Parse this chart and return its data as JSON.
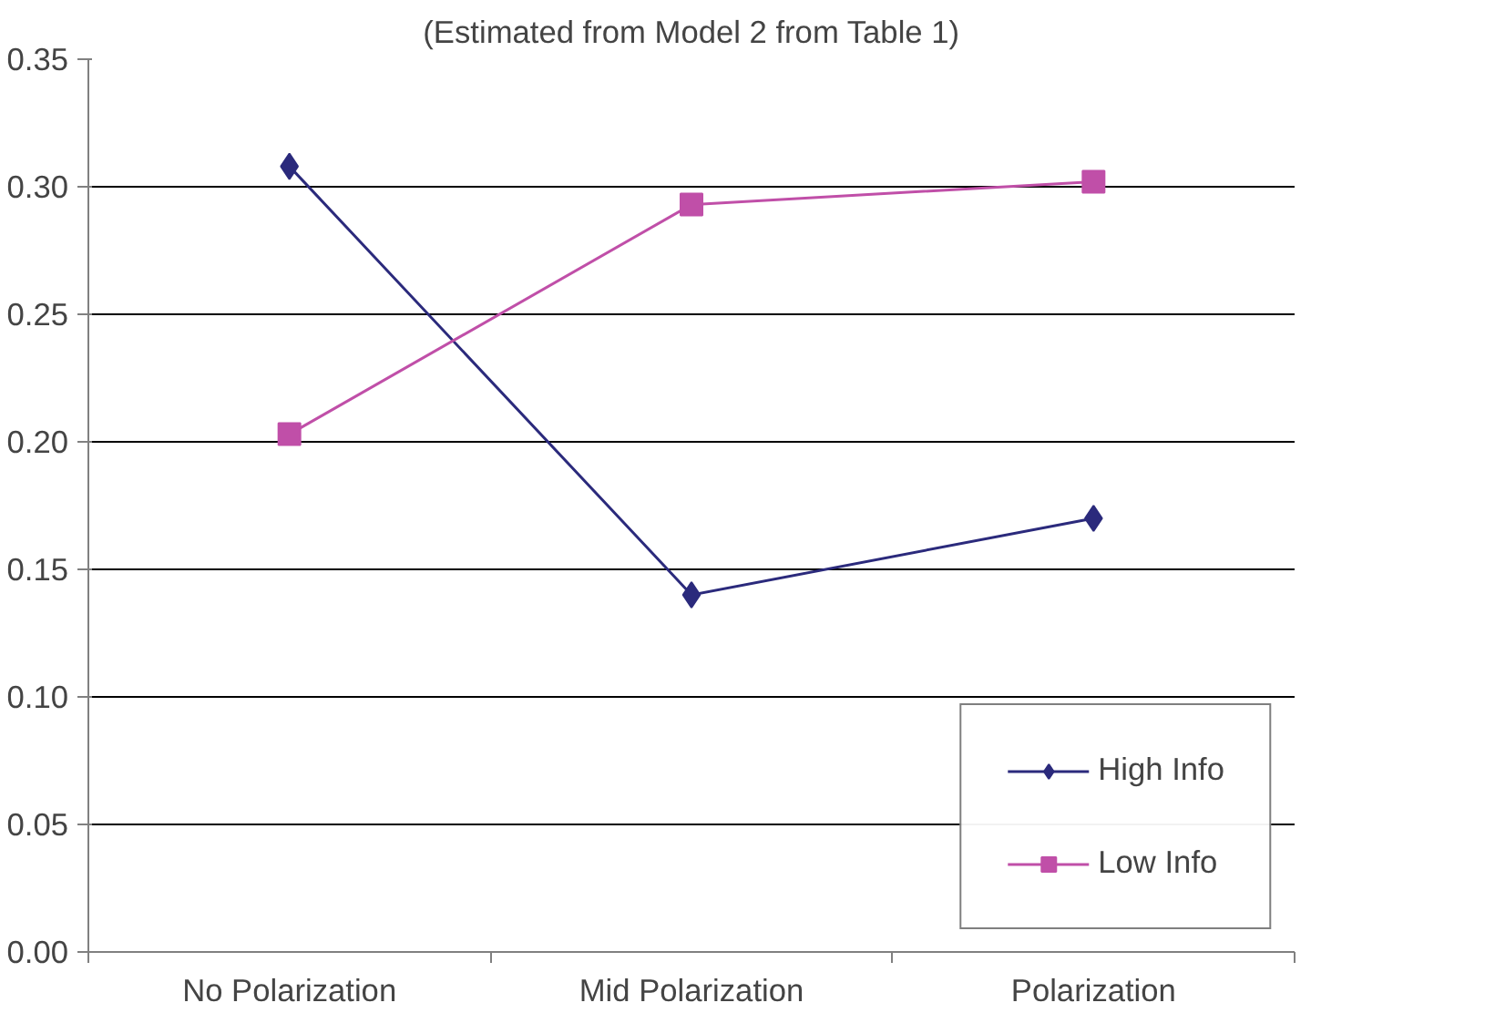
{
  "chart_data": {
    "type": "line",
    "title": "(Estimated from Model 2 from Table 1)",
    "categories": [
      "No Polarization",
      "Mid Polarization",
      "Polarization"
    ],
    "series": [
      {
        "name": "High Info",
        "color": "#2b2a7c",
        "marker": "diamond",
        "values": [
          0.308,
          0.14,
          0.17
        ]
      },
      {
        "name": "Low Info",
        "color": "#c04fa8",
        "marker": "square",
        "values": [
          0.203,
          0.293,
          0.302
        ]
      }
    ],
    "ylim": [
      0,
      0.35
    ],
    "yticks": [
      {
        "value": 0,
        "label": "0.00"
      },
      0.05,
      {
        "value": 0.1,
        "label": "0.10"
      },
      0.15,
      {
        "value": 0.2,
        "label": "0.20"
      },
      0.25,
      {
        "value": 0.3,
        "label": "0.30"
      },
      0.35
    ],
    "grid": "y",
    "legend": "bottom right",
    "line_style": "solid"
  }
}
